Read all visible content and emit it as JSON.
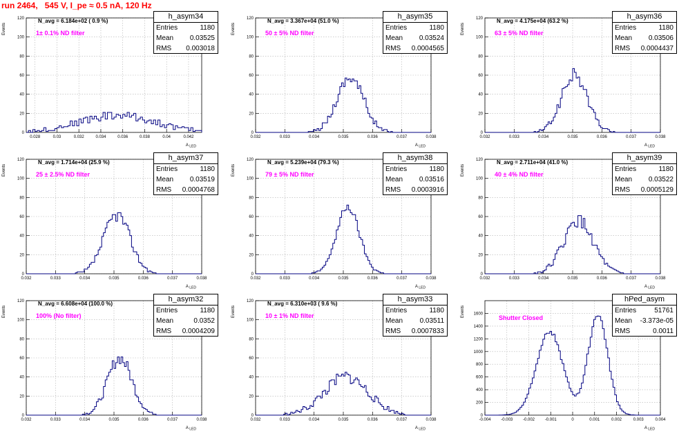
{
  "header": {
    "run_title": "run 2464,   545 V, I_pe ≈ 0.5 nA, 120 Hz"
  },
  "colors": {
    "title": "#ff0000",
    "annotation": "#ff00ff",
    "histogram_line": "#000080",
    "grid": "#b0b0b0"
  },
  "chart_data": [
    {
      "type": "bar",
      "name": "h_asym34",
      "title": "h_asym34",
      "xlabel": "A_LED",
      "ylabel": "Events",
      "xlim": [
        0.0272,
        0.0432
      ],
      "ylim": [
        0,
        120
      ],
      "xticks": [
        "0.028",
        "0.03",
        "0.032",
        "0.034",
        "0.036",
        "0.038",
        "0.04",
        "0.042"
      ],
      "xtick_values": [
        0.028,
        0.03,
        0.032,
        0.034,
        0.036,
        0.038,
        0.04,
        0.042
      ],
      "yticks": [
        "0",
        "20",
        "40",
        "60",
        "80",
        "100",
        "120"
      ],
      "ytick_values": [
        0,
        20,
        40,
        60,
        80,
        100,
        120
      ],
      "stats": {
        "entries_label": "Entries",
        "entries": "1180",
        "mean_label": "Mean",
        "mean": "0.03525",
        "rms_label": "RMS",
        "rms": "0.003018"
      },
      "n_avg": "N_avg = 6.184e+02 ( 0.9 %)",
      "filter": "1± 0.1% ND filter",
      "hist": {
        "mean": 0.0355,
        "sigma": 0.0035,
        "peak": 18,
        "bins": 80,
        "noise": 7,
        "seed": 34
      }
    },
    {
      "type": "bar",
      "name": "h_asym35",
      "title": "h_asym35",
      "xlabel": "A_LED",
      "ylabel": "Events",
      "xlim": [
        0.032,
        0.038
      ],
      "ylim": [
        0,
        120
      ],
      "xticks": [
        "0.032",
        "0.033",
        "0.034",
        "0.035",
        "0.036",
        "0.037",
        "0.038"
      ],
      "xtick_values": [
        0.032,
        0.033,
        0.034,
        0.035,
        0.036,
        0.037,
        0.038
      ],
      "yticks": [
        "0",
        "20",
        "40",
        "60",
        "80",
        "100",
        "120"
      ],
      "ytick_values": [
        0,
        20,
        40,
        60,
        80,
        100,
        120
      ],
      "stats": {
        "entries_label": "Entries",
        "entries": "1180",
        "mean_label": "Mean",
        "mean": "0.03524",
        "rms_label": "RMS",
        "rms": "0.0004565"
      },
      "n_avg": "N_avg = 3.367e+04 (51.0 %)",
      "filter": "50 ± 5% ND filter",
      "hist": {
        "mean": 0.03524,
        "sigma": 0.00046,
        "peak": 58,
        "bins": 100,
        "noise": 10,
        "seed": 35
      }
    },
    {
      "type": "bar",
      "name": "h_asym36",
      "title": "h_asym36",
      "xlabel": "A_LED",
      "ylabel": "Events",
      "xlim": [
        0.032,
        0.038
      ],
      "ylim": [
        0,
        120
      ],
      "xticks": [
        "0.032",
        "0.033",
        "0.034",
        "0.035",
        "0.036",
        "0.037",
        "0.038"
      ],
      "xtick_values": [
        0.032,
        0.033,
        0.034,
        0.035,
        0.036,
        0.037,
        0.038
      ],
      "yticks": [
        "0",
        "20",
        "40",
        "60",
        "80",
        "100",
        "120"
      ],
      "ytick_values": [
        0,
        20,
        40,
        60,
        80,
        100,
        120
      ],
      "stats": {
        "entries_label": "Entries",
        "entries": "1180",
        "mean_label": "Mean",
        "mean": "0.03506",
        "rms_label": "RMS",
        "rms": "0.0004437"
      },
      "n_avg": "N_avg = 4.175e+04 (63.2 %)",
      "filter": "63 ± 5% ND filter",
      "hist": {
        "mean": 0.03506,
        "sigma": 0.00044,
        "peak": 60,
        "bins": 100,
        "noise": 10,
        "seed": 36
      }
    },
    {
      "type": "bar",
      "name": "h_asym37",
      "title": "h_asym37",
      "xlabel": "A_LED",
      "ylabel": "Events",
      "xlim": [
        0.032,
        0.038
      ],
      "ylim": [
        0,
        120
      ],
      "xticks": [
        "0.032",
        "0.033",
        "0.034",
        "0.035",
        "0.036",
        "0.037",
        "0.038"
      ],
      "xtick_values": [
        0.032,
        0.033,
        0.034,
        0.035,
        0.036,
        0.037,
        0.038
      ],
      "yticks": [
        "0",
        "20",
        "40",
        "60",
        "80",
        "100",
        "120"
      ],
      "ytick_values": [
        0,
        20,
        40,
        60,
        80,
        100,
        120
      ],
      "stats": {
        "entries_label": "Entries",
        "entries": "1180",
        "mean_label": "Mean",
        "mean": "0.03519",
        "rms_label": "RMS",
        "rms": "0.0004768"
      },
      "n_avg": "N_avg = 1.714e+04 (25.9 %)",
      "filter": "25 ± 2.5% ND filter",
      "hist": {
        "mean": 0.0351,
        "sigma": 0.00045,
        "peak": 62,
        "bins": 100,
        "noise": 10,
        "seed": 37
      }
    },
    {
      "type": "bar",
      "name": "h_asym38",
      "title": "h_asym38",
      "xlabel": "A_LED",
      "ylabel": "Events",
      "xlim": [
        0.032,
        0.038
      ],
      "ylim": [
        0,
        120
      ],
      "xticks": [
        "0.032",
        "0.033",
        "0.034",
        "0.035",
        "0.036",
        "0.037",
        "0.038"
      ],
      "xtick_values": [
        0.032,
        0.033,
        0.034,
        0.035,
        0.036,
        0.037,
        0.038
      ],
      "yticks": [
        "0",
        "20",
        "40",
        "60",
        "80",
        "100",
        "120"
      ],
      "ytick_values": [
        0,
        20,
        40,
        60,
        80,
        100,
        120
      ],
      "stats": {
        "entries_label": "Entries",
        "entries": "1180",
        "mean_label": "Mean",
        "mean": "0.03516",
        "rms_label": "RMS",
        "rms": "0.0003916"
      },
      "n_avg": "N_avg = 5.239e+04 (79.3 %)",
      "filter": "79 ± 5% ND filter",
      "hist": {
        "mean": 0.03516,
        "sigma": 0.00039,
        "peak": 70,
        "bins": 100,
        "noise": 6,
        "seed": 38
      }
    },
    {
      "type": "bar",
      "name": "h_asym39",
      "title": "h_asym39",
      "xlabel": "A_LED",
      "ylabel": "Events",
      "xlim": [
        0.032,
        0.038
      ],
      "ylim": [
        0,
        120
      ],
      "xticks": [
        "0.032",
        "0.033",
        "0.034",
        "0.035",
        "0.036",
        "0.037",
        "0.038"
      ],
      "xtick_values": [
        0.032,
        0.033,
        0.034,
        0.035,
        0.036,
        0.037,
        0.038
      ],
      "yticks": [
        "0",
        "20",
        "40",
        "60",
        "80",
        "100",
        "120"
      ],
      "ytick_values": [
        0,
        20,
        40,
        60,
        80,
        100,
        120
      ],
      "stats": {
        "entries_label": "Entries",
        "entries": "1180",
        "mean_label": "Mean",
        "mean": "0.03522",
        "rms_label": "RMS",
        "rms": "0.0005129"
      },
      "n_avg": "N_avg = 2.711e+04 (41.0 %)",
      "filter": "40 ± 4% ND filter",
      "hist": {
        "mean": 0.0352,
        "sigma": 0.00051,
        "peak": 55,
        "bins": 100,
        "noise": 10,
        "seed": 39
      }
    },
    {
      "type": "bar",
      "name": "h_asym32",
      "title": "h_asym32",
      "xlabel": "A_LED",
      "ylabel": "Events",
      "xlim": [
        0.032,
        0.038
      ],
      "ylim": [
        0,
        120
      ],
      "xticks": [
        "0.032",
        "0.033",
        "0.034",
        "0.035",
        "0.036",
        "0.037",
        "0.038"
      ],
      "xtick_values": [
        0.032,
        0.033,
        0.034,
        0.035,
        0.036,
        0.037,
        0.038
      ],
      "yticks": [
        "0",
        "20",
        "40",
        "60",
        "80",
        "100",
        "120"
      ],
      "ytick_values": [
        0,
        20,
        40,
        60,
        80,
        100,
        120
      ],
      "stats": {
        "entries_label": "Entries",
        "entries": "1180",
        "mean_label": "Mean",
        "mean": "0.0352",
        "rms_label": "RMS",
        "rms": "0.0004209"
      },
      "n_avg": "N_avg = 6.608e+04 (100.0 %)",
      "filter": "100% (No filter)",
      "hist": {
        "mean": 0.0352,
        "sigma": 0.00042,
        "peak": 60,
        "bins": 100,
        "noise": 10,
        "seed": 32
      }
    },
    {
      "type": "bar",
      "name": "h_asym33",
      "title": "h_asym33",
      "xlabel": "A_LED",
      "ylabel": "Events",
      "xlim": [
        0.032,
        0.038
      ],
      "ylim": [
        0,
        120
      ],
      "xticks": [
        "0.032",
        "0.033",
        "0.034",
        "0.035",
        "0.036",
        "0.037",
        "0.038"
      ],
      "xtick_values": [
        0.032,
        0.033,
        0.034,
        0.035,
        0.036,
        0.037,
        0.038
      ],
      "yticks": [
        "0",
        "20",
        "40",
        "60",
        "80",
        "100",
        "120"
      ],
      "ytick_values": [
        0,
        20,
        40,
        60,
        80,
        100,
        120
      ],
      "stats": {
        "entries_label": "Entries",
        "entries": "1180",
        "mean_label": "Mean",
        "mean": "0.03511",
        "rms_label": "RMS",
        "rms": "0.0007833"
      },
      "n_avg": "N_avg = 6.310e+03 ( 9.6 %)",
      "filter": "10 ± 1% ND filter",
      "hist": {
        "mean": 0.0351,
        "sigma": 0.00075,
        "peak": 40,
        "bins": 100,
        "noise": 10,
        "seed": 33
      }
    },
    {
      "type": "bar",
      "name": "hPed_asym",
      "title": "hPed_asym",
      "xlabel": "A_LED",
      "ylabel": "Events",
      "xlim": [
        -0.004,
        0.004
      ],
      "ylim": [
        0,
        1800
      ],
      "xticks": [
        "-0.004",
        "-0.003",
        "-0.002",
        "-0.001",
        "0",
        "0.001",
        "0.002",
        "0.003",
        "0.004"
      ],
      "xtick_values": [
        -0.004,
        -0.003,
        -0.002,
        -0.001,
        0,
        0.001,
        0.002,
        0.003,
        0.004
      ],
      "yticks": [
        "0",
        "200",
        "400",
        "600",
        "800",
        "1000",
        "1200",
        "1400",
        "1600"
      ],
      "ytick_values": [
        0,
        200,
        400,
        600,
        800,
        1000,
        1200,
        1400,
        1600
      ],
      "stats": {
        "entries_label": "Entries",
        "entries": "51761",
        "mean_label": "Mean",
        "mean": "-3.373e-05",
        "rms_label": "RMS",
        "rms": "0.0011"
      },
      "filter": "Shutter Closed",
      "hist": {
        "bimodal": true,
        "m1": -0.00105,
        "s1": 0.0006,
        "a1": 1320,
        "m2": 0.00115,
        "s2": 0.00045,
        "a2": 1580,
        "bins": 100,
        "noise": 50,
        "seed": 40
      }
    }
  ]
}
